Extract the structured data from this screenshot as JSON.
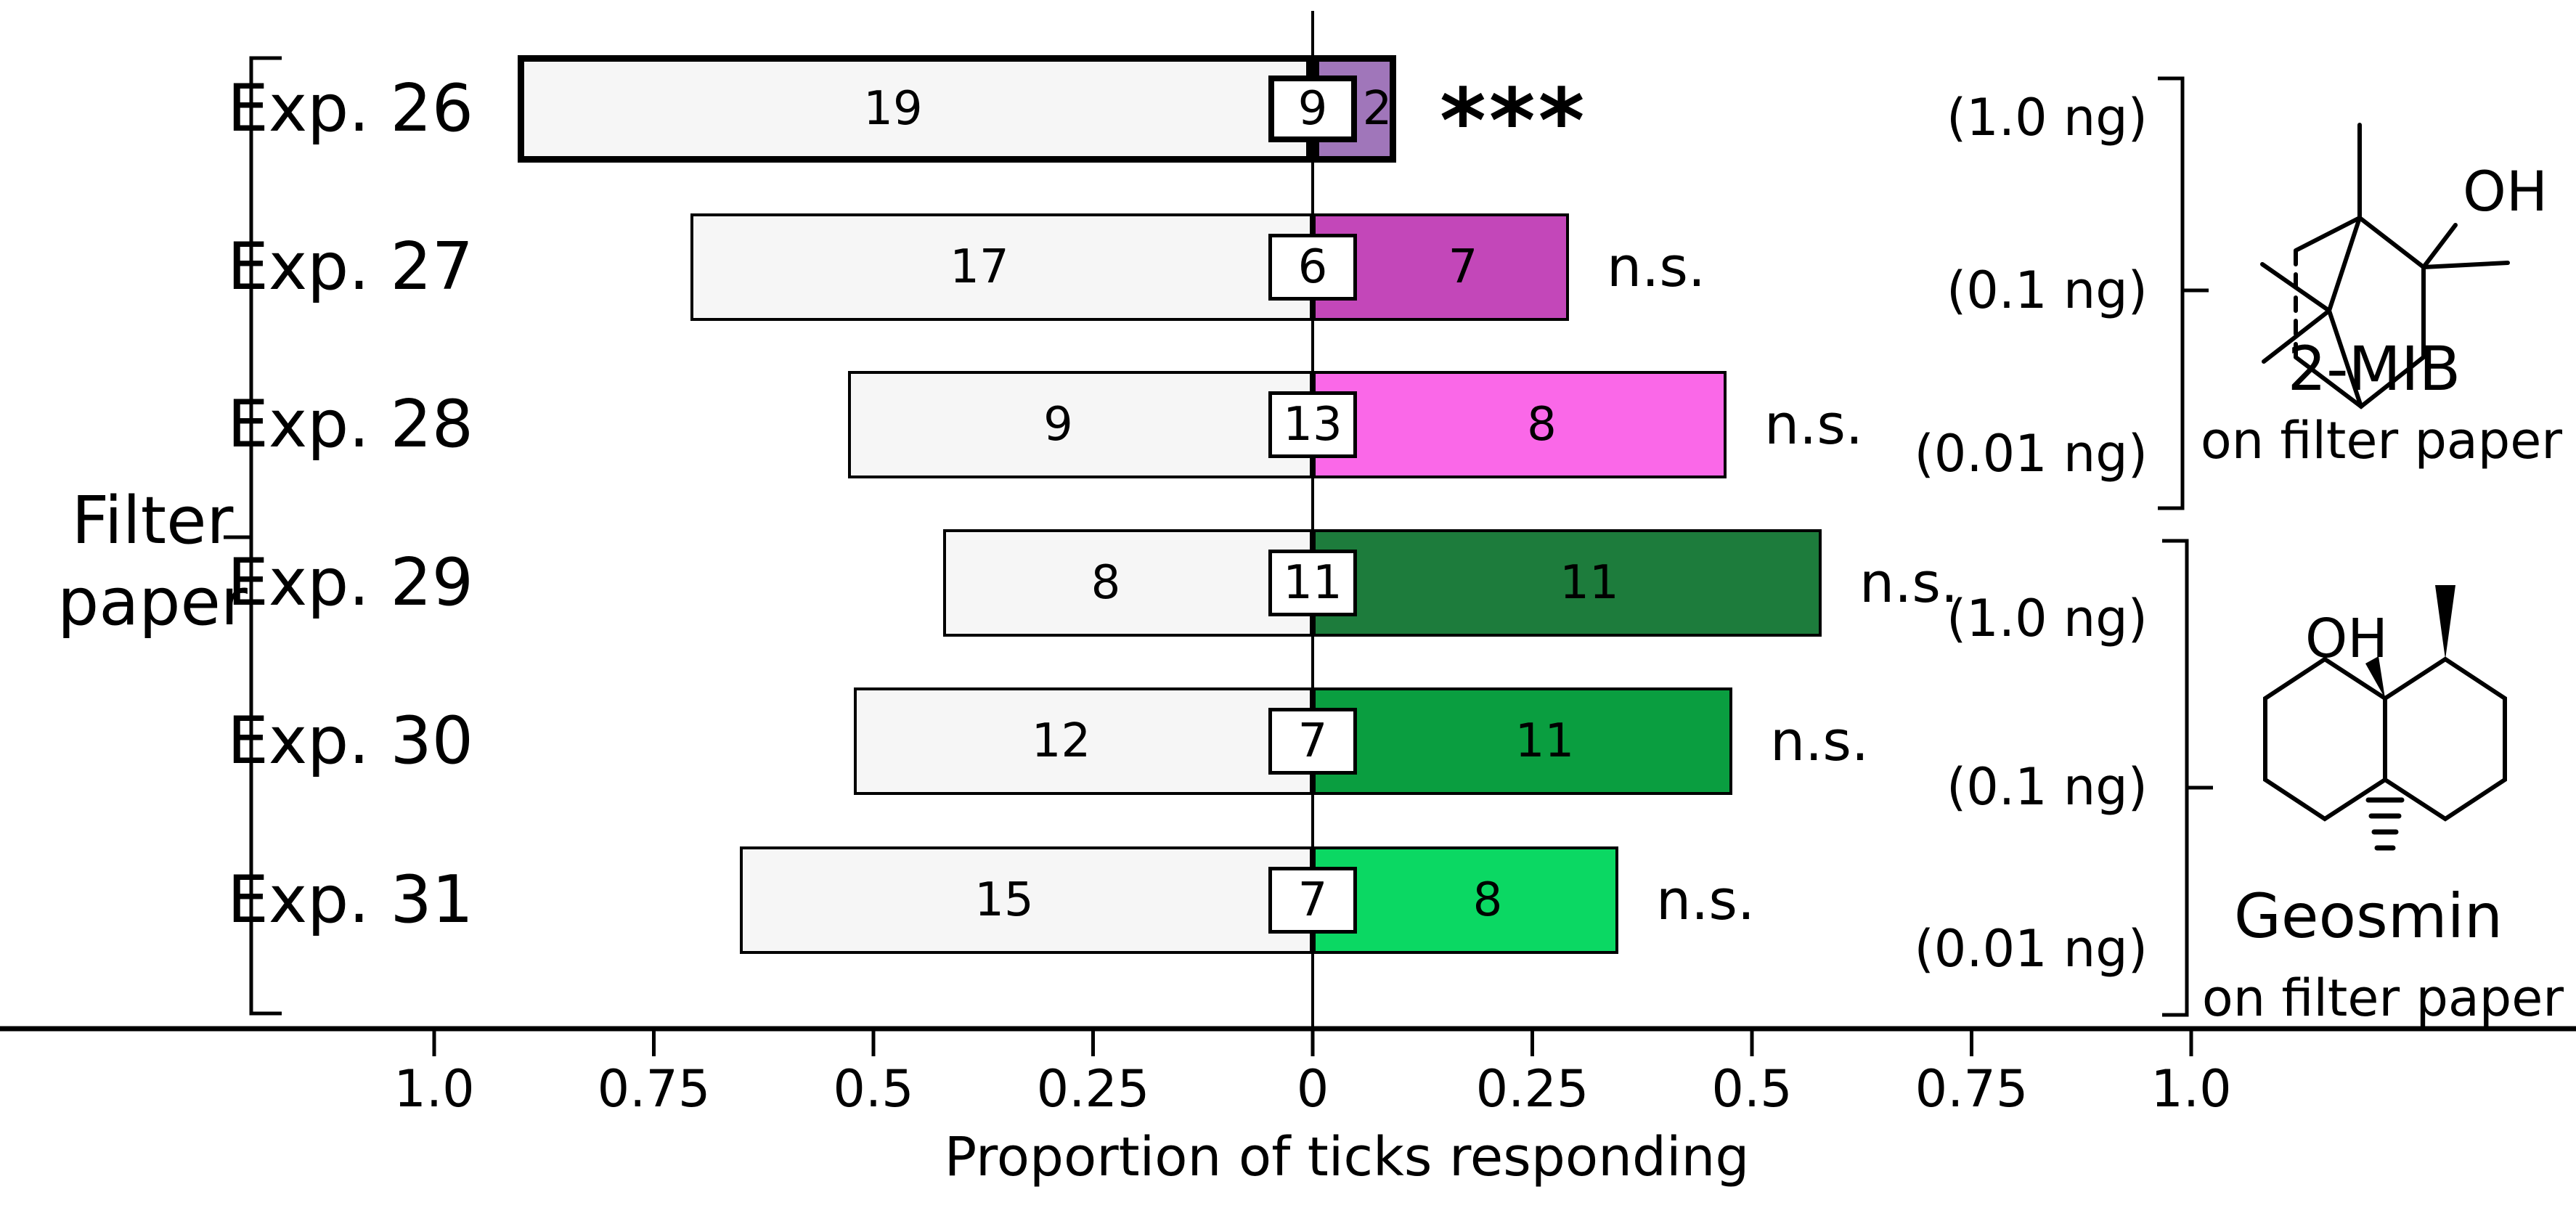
{
  "figure": {
    "background": "#ffffff",
    "bar_fill": "#f6f6f6",
    "outline_color": "#000000",
    "group_label": {
      "line1": "Filter",
      "line2": "paper"
    }
  },
  "chart_data": {
    "type": "diverging-bar",
    "title": "",
    "xlabel": "Proportion of ticks responding",
    "legend_position": "none",
    "grid": false,
    "x_axis": {
      "range": [
        -1.0,
        1.0
      ],
      "ticks": [
        {
          "label": "1.0",
          "value": -1.0
        },
        {
          "label": "0.75",
          "value": -0.75
        },
        {
          "label": "0.5",
          "value": -0.5
        },
        {
          "label": "0.25",
          "value": -0.25
        },
        {
          "label": "0",
          "value": 0
        },
        {
          "label": "0.25",
          "value": 0.25
        },
        {
          "label": "0.5",
          "value": 0.5
        },
        {
          "label": "0.75",
          "value": 0.75
        },
        {
          "label": "1.0",
          "value": 1.0
        }
      ]
    },
    "rows": [
      {
        "label": "Exp. 26",
        "left_count": 19,
        "center_count": 9,
        "right_count": 2,
        "left_prop": 0.905,
        "right_prop": 0.095,
        "significance": "***",
        "dose": "(1.0 ng)",
        "color": "#a076ba",
        "bold_outline": true
      },
      {
        "label": "Exp. 27",
        "left_count": 17,
        "center_count": 6,
        "right_count": 7,
        "left_prop": 0.708,
        "right_prop": 0.292,
        "significance": "n.s.",
        "dose": "(0.1 ng)",
        "color": "#c347b9",
        "bold_outline": false
      },
      {
        "label": "Exp. 28",
        "left_count": 9,
        "center_count": 13,
        "right_count": 8,
        "left_prop": 0.529,
        "right_prop": 0.471,
        "significance": "n.s.",
        "dose": "(0.01 ng)",
        "color": "#fa68e8",
        "bold_outline": false
      },
      {
        "label": "Exp. 29",
        "left_count": 8,
        "center_count": 11,
        "right_count": 11,
        "left_prop": 0.421,
        "right_prop": 0.579,
        "significance": "n.s.",
        "dose": "(1.0 ng)",
        "color": "#1d7c3c",
        "bold_outline": false
      },
      {
        "label": "Exp. 30",
        "left_count": 12,
        "center_count": 7,
        "right_count": 11,
        "left_prop": 0.522,
        "right_prop": 0.478,
        "significance": "n.s.",
        "dose": "(0.1 ng)",
        "color": "#0a9e40",
        "bold_outline": false
      },
      {
        "label": "Exp. 31",
        "left_count": 15,
        "center_count": 7,
        "right_count": 8,
        "left_prop": 0.652,
        "right_prop": 0.348,
        "significance": "n.s.",
        "dose": "(0.01 ng)",
        "color": "#0bd863",
        "bold_outline": false
      }
    ],
    "compound_groups": [
      {
        "name": "2-MIB",
        "subtitle": "on filter paper",
        "doses": [
          "(1.0 ng)",
          "(0.1 ng)",
          "(0.01 ng)"
        ]
      },
      {
        "name": "Geosmin",
        "subtitle": "on filter paper",
        "doses": [
          "(1.0 ng)",
          "(0.1 ng)",
          "(0.01 ng)"
        ]
      }
    ]
  }
}
